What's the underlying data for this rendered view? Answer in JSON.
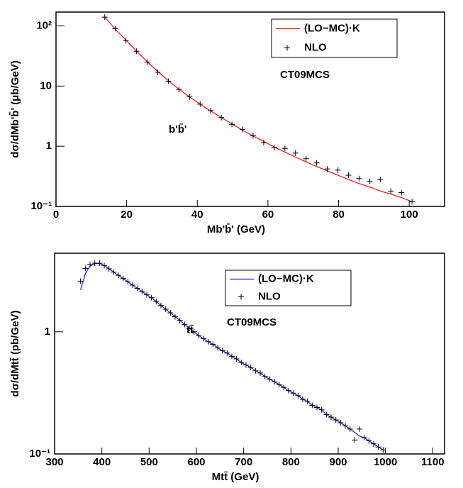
{
  "chart_data": [
    {
      "type": "line",
      "log_y": true,
      "ylabel": "dσ/dMb'b̄' (μb/GeV)",
      "xlabel": "Mb'b̄' (GeV)",
      "xlim": [
        0,
        110
      ],
      "ylim": [
        0.1,
        170
      ],
      "xticks": [
        0,
        20,
        40,
        60,
        80,
        100
      ],
      "yticks": [
        {
          "value": 0.1,
          "label": "10⁻¹"
        },
        1,
        10,
        {
          "value": 100,
          "label": "10²"
        }
      ],
      "annotations": [
        {
          "text": "CT09MCS",
          "color": "#000000"
        },
        {
          "text": "b'b̄'",
          "color": "#e8100a"
        }
      ],
      "x": [
        13.8,
        16.8,
        19.8,
        22.8,
        25.8,
        28.8,
        31.8,
        34.8,
        37.8,
        40.8,
        43.8,
        46.8,
        49.8,
        52.8,
        55.8,
        58.8,
        61.8,
        64.8,
        67.8,
        70.8,
        73.8,
        76.8,
        79.8,
        82.8,
        85.8,
        88.8,
        91.8,
        94.8,
        97.8,
        100.8
      ],
      "series": [
        {
          "name": "(LO−MC)·K",
          "color": "#e8100a",
          "mode": "line",
          "values": [
            140,
            88,
            58,
            38,
            25.5,
            17.5,
            12.3,
            8.9,
            6.6,
            5.0,
            3.85,
            3.0,
            2.35,
            1.85,
            1.48,
            1.2,
            0.97,
            0.8,
            0.66,
            0.55,
            0.46,
            0.39,
            0.33,
            0.28,
            0.24,
            0.21,
            0.18,
            0.16,
            0.14,
            0.12
          ]
        },
        {
          "name": "NLO",
          "color": "#000000",
          "mode": "markers",
          "values": [
            140,
            90,
            57,
            38,
            25,
            17,
            12,
            8.8,
            6.6,
            5.0,
            3.9,
            3.0,
            2.3,
            1.9,
            1.5,
            1.15,
            0.95,
            0.92,
            0.77,
            0.62,
            0.53,
            0.42,
            0.4,
            0.33,
            0.29,
            0.26,
            0.28,
            0.18,
            0.17,
            0.12
          ]
        }
      ]
    },
    {
      "type": "line",
      "log_y": true,
      "ylabel": "dσ/dMtt̄ (pb/GeV)",
      "xlabel": "Mtt̄  (GeV)",
      "xlim": [
        300,
        1125
      ],
      "ylim": [
        0.1,
        4.4
      ],
      "xticks": [
        300,
        400,
        500,
        600,
        700,
        800,
        900,
        1000,
        1100
      ],
      "yticks": [
        {
          "value": 0.1,
          "label": "10⁻¹"
        },
        1
      ],
      "annotations": [
        {
          "text": "CT09MCS",
          "color": "#000000"
        },
        {
          "text": "tt̄",
          "color": "#1a1ae0"
        }
      ],
      "x": [
        355,
        365,
        375,
        385,
        395,
        405,
        415,
        425,
        435,
        445,
        455,
        465,
        475,
        485,
        495,
        505,
        515,
        525,
        535,
        545,
        555,
        565,
        575,
        585,
        595,
        605,
        615,
        625,
        635,
        645,
        655,
        665,
        675,
        685,
        695,
        705,
        715,
        725,
        735,
        745,
        755,
        765,
        775,
        785,
        795,
        805,
        815,
        825,
        835,
        845,
        855,
        865,
        875,
        885,
        895,
        905,
        915,
        925,
        935,
        945,
        955,
        965,
        975,
        985,
        995
      ],
      "series": [
        {
          "name": "(LO−MC)·K",
          "color": "#1a1ae0",
          "mode": "line",
          "values": [
            2.2,
            3.0,
            3.45,
            3.62,
            3.64,
            3.49,
            3.28,
            3.08,
            2.9,
            2.73,
            2.57,
            2.41,
            2.27,
            2.14,
            2.01,
            1.9,
            1.77,
            1.64,
            1.53,
            1.43,
            1.33,
            1.24,
            1.15,
            1.07,
            1.0,
            0.93,
            0.88,
            0.83,
            0.79,
            0.74,
            0.7,
            0.67,
            0.63,
            0.6,
            0.56,
            0.535,
            0.51,
            0.48,
            0.46,
            0.43,
            0.41,
            0.39,
            0.37,
            0.35,
            0.33,
            0.315,
            0.3,
            0.28,
            0.27,
            0.25,
            0.24,
            0.23,
            0.21,
            0.2,
            0.19,
            0.18,
            0.17,
            0.16,
            0.15,
            0.14,
            0.136,
            0.128,
            0.121,
            0.114,
            0.108
          ]
        },
        {
          "name": "NLO",
          "color": "#000000",
          "mode": "markers",
          "values": [
            2.6,
            3.3,
            3.55,
            3.65,
            3.64,
            3.49,
            3.28,
            3.08,
            2.9,
            2.73,
            2.57,
            2.41,
            2.27,
            2.14,
            2.01,
            1.9,
            1.77,
            1.64,
            1.53,
            1.43,
            1.33,
            1.24,
            1.15,
            1.07,
            1.0,
            0.93,
            0.88,
            0.83,
            0.79,
            0.74,
            0.7,
            0.67,
            0.63,
            0.6,
            0.56,
            0.535,
            0.51,
            0.48,
            0.46,
            0.43,
            0.41,
            0.39,
            0.37,
            0.35,
            0.33,
            0.315,
            0.3,
            0.28,
            0.27,
            0.25,
            0.24,
            0.23,
            0.21,
            0.2,
            0.19,
            0.18,
            0.17,
            0.16,
            0.13,
            0.16,
            0.136,
            0.128,
            0.121,
            0.114,
            0.108
          ]
        }
      ]
    }
  ]
}
